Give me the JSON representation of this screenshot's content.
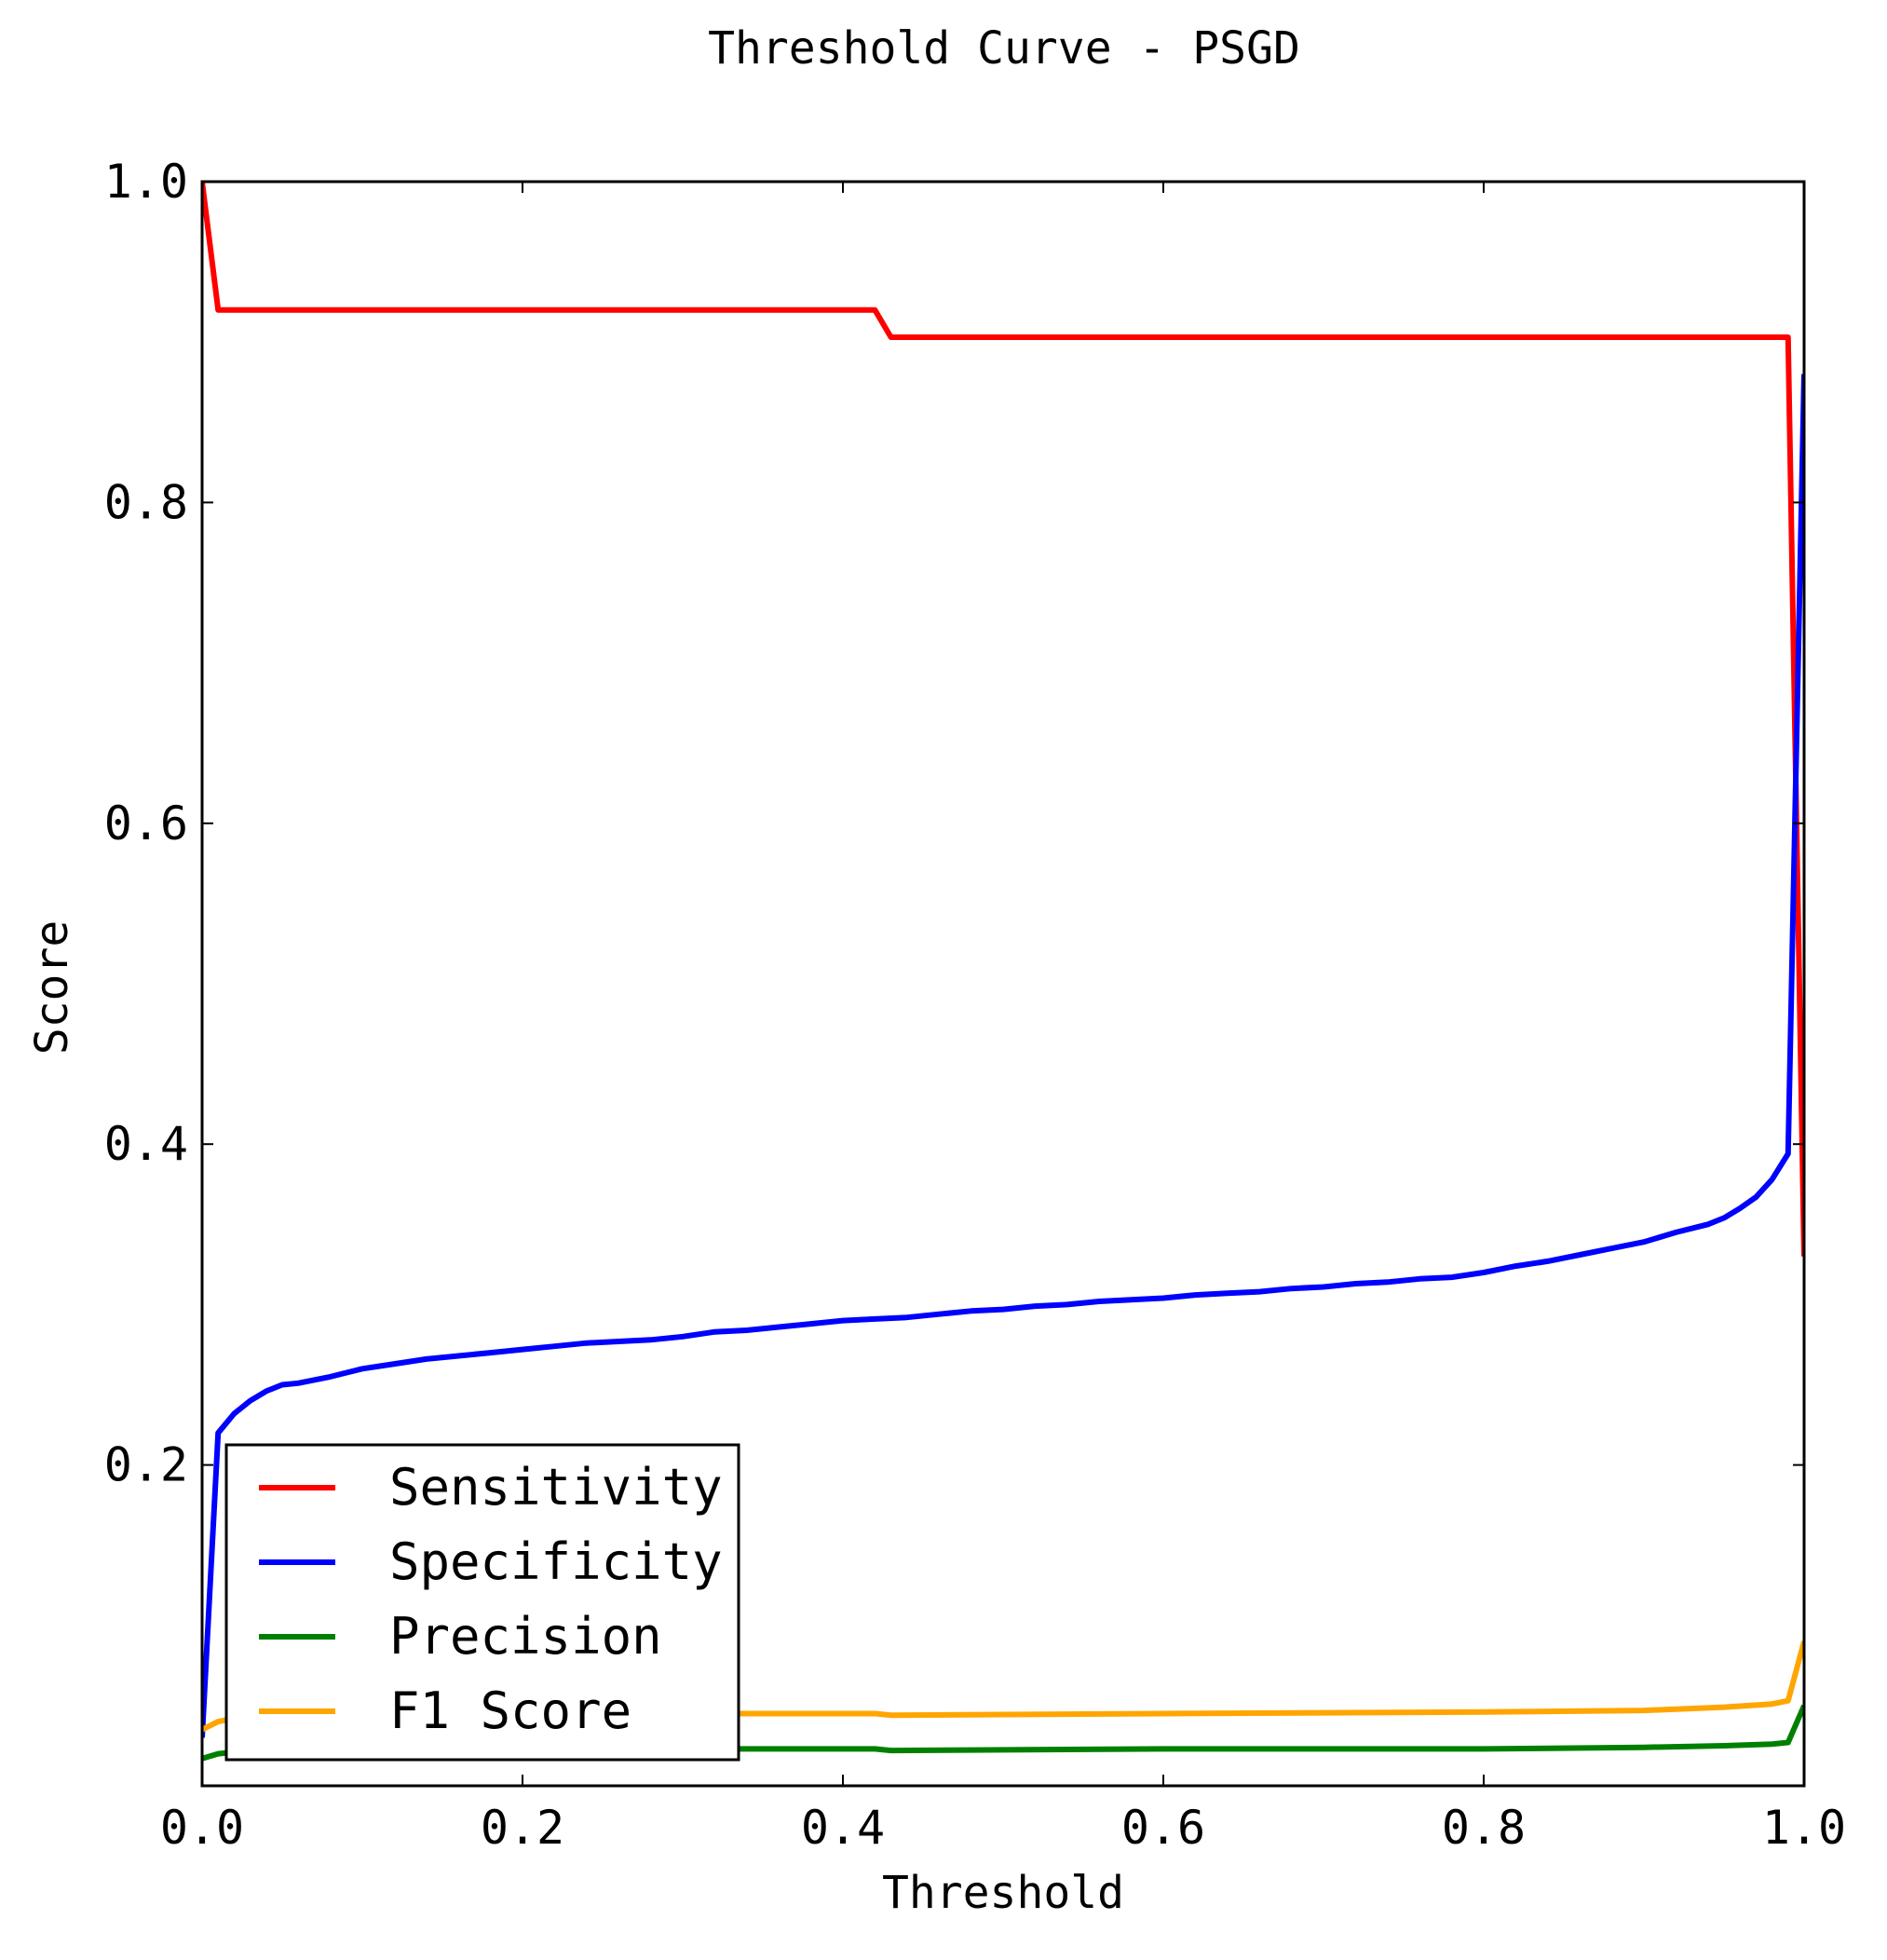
{
  "chart_data": {
    "type": "line",
    "title": "Threshold Curve - PSGD",
    "xlabel": "Threshold",
    "ylabel": "Score",
    "xlim": [
      0.0,
      1.0
    ],
    "ylim": [
      0.0,
      1.0
    ],
    "xticks": [
      "0.0",
      "0.2",
      "0.4",
      "0.6",
      "0.8",
      "1.0"
    ],
    "yticks": [
      "0.2",
      "0.4",
      "0.6",
      "0.8",
      "1.0"
    ],
    "xtick_values": [
      0.0,
      0.2,
      0.4,
      0.6,
      0.8,
      1.0
    ],
    "ytick_values": [
      0.2,
      0.4,
      0.6,
      0.8,
      1.0
    ],
    "grid": false,
    "legend_position": "lower-left",
    "series": [
      {
        "name": "Sensitivity",
        "color": "#ff0000",
        "x": [
          0.0,
          0.01,
          0.42,
          0.43,
          0.99,
          1.0
        ],
        "y": [
          1.0,
          0.92,
          0.92,
          0.903,
          0.903,
          0.33
        ]
      },
      {
        "name": "Specificity",
        "color": "#0000ff",
        "x": [
          0.0,
          0.01,
          0.02,
          0.03,
          0.04,
          0.05,
          0.06,
          0.08,
          0.1,
          0.12,
          0.14,
          0.16,
          0.18,
          0.2,
          0.22,
          0.24,
          0.26,
          0.28,
          0.3,
          0.32,
          0.34,
          0.36,
          0.38,
          0.4,
          0.42,
          0.44,
          0.46,
          0.48,
          0.5,
          0.52,
          0.54,
          0.56,
          0.58,
          0.6,
          0.62,
          0.64,
          0.66,
          0.68,
          0.7,
          0.72,
          0.74,
          0.76,
          0.78,
          0.8,
          0.82,
          0.84,
          0.86,
          0.88,
          0.9,
          0.92,
          0.94,
          0.95,
          0.96,
          0.97,
          0.98,
          0.99,
          1.0
        ],
        "y": [
          0.03,
          0.22,
          0.232,
          0.24,
          0.246,
          0.25,
          0.251,
          0.255,
          0.26,
          0.263,
          0.266,
          0.268,
          0.27,
          0.272,
          0.274,
          0.276,
          0.277,
          0.278,
          0.28,
          0.283,
          0.284,
          0.286,
          0.288,
          0.29,
          0.291,
          0.292,
          0.294,
          0.296,
          0.297,
          0.299,
          0.3,
          0.302,
          0.303,
          0.304,
          0.306,
          0.307,
          0.308,
          0.31,
          0.311,
          0.313,
          0.314,
          0.316,
          0.317,
          0.32,
          0.324,
          0.327,
          0.331,
          0.335,
          0.339,
          0.345,
          0.35,
          0.354,
          0.36,
          0.367,
          0.378,
          0.394,
          0.88
        ]
      },
      {
        "name": "Precision",
        "color": "#008000",
        "x": [
          0.0,
          0.01,
          0.02,
          0.05,
          0.2,
          0.42,
          0.43,
          0.6,
          0.8,
          0.9,
          0.95,
          0.98,
          0.99,
          1.0
        ],
        "y": [
          0.017,
          0.02,
          0.021,
          0.022,
          0.023,
          0.023,
          0.022,
          0.023,
          0.023,
          0.024,
          0.025,
          0.026,
          0.027,
          0.05
        ]
      },
      {
        "name": "F1 Score",
        "color": "#ffa500",
        "x": [
          0.0,
          0.01,
          0.02,
          0.05,
          0.2,
          0.42,
          0.43,
          0.6,
          0.8,
          0.9,
          0.95,
          0.98,
          0.99,
          1.0
        ],
        "y": [
          0.035,
          0.04,
          0.042,
          0.044,
          0.045,
          0.045,
          0.044,
          0.045,
          0.046,
          0.047,
          0.049,
          0.051,
          0.053,
          0.09
        ]
      }
    ]
  }
}
